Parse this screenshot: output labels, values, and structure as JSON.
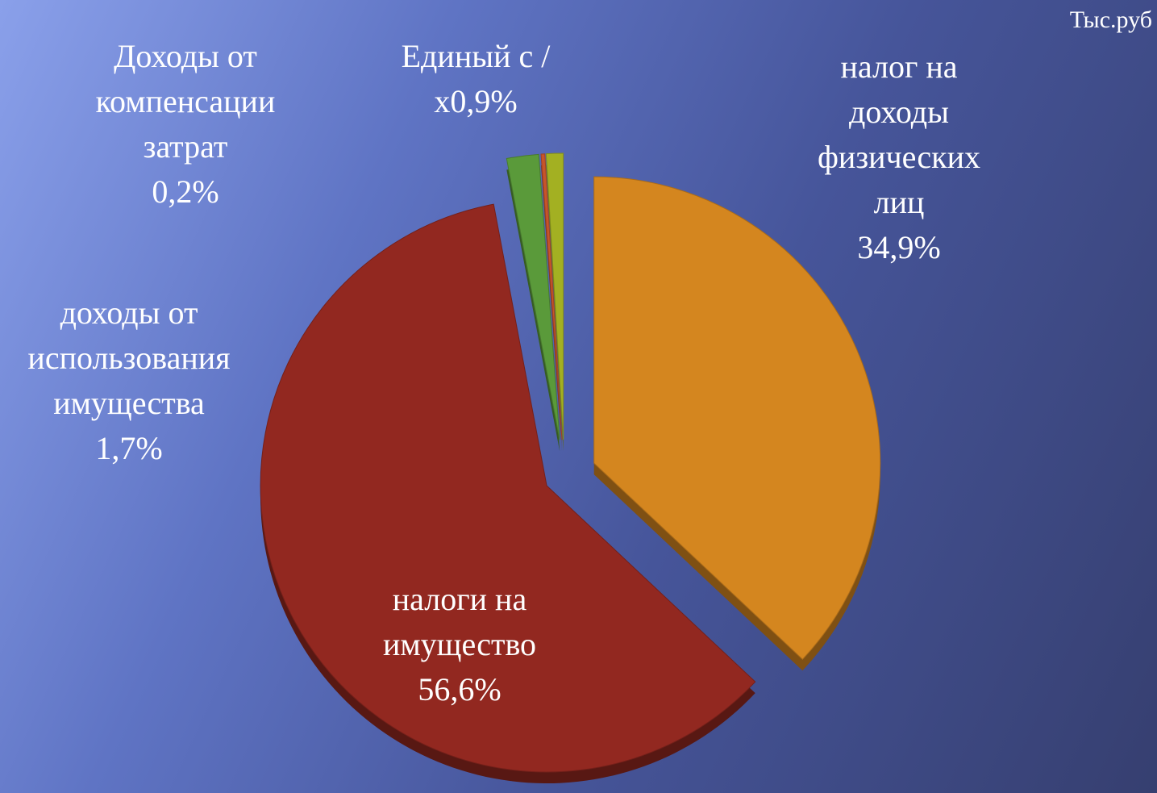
{
  "chart_data": {
    "type": "pie",
    "annotation": "Тыс.руб",
    "categories": [
      "налог на доходы физических лиц",
      "налоги на имущество",
      "доходы от использования имущества",
      "Доходы от компенсации затрат",
      "Единый с /х"
    ],
    "values": [
      34.9,
      56.6,
      1.7,
      0.2,
      0.9
    ],
    "value_labels": [
      "34,9%",
      "56,6%",
      "1,7%",
      "0,2%",
      "0,9%"
    ],
    "colors": [
      "#d4861f",
      "#922820",
      "#5a9a3a",
      "#c8542a",
      "#a3b022"
    ]
  }
}
